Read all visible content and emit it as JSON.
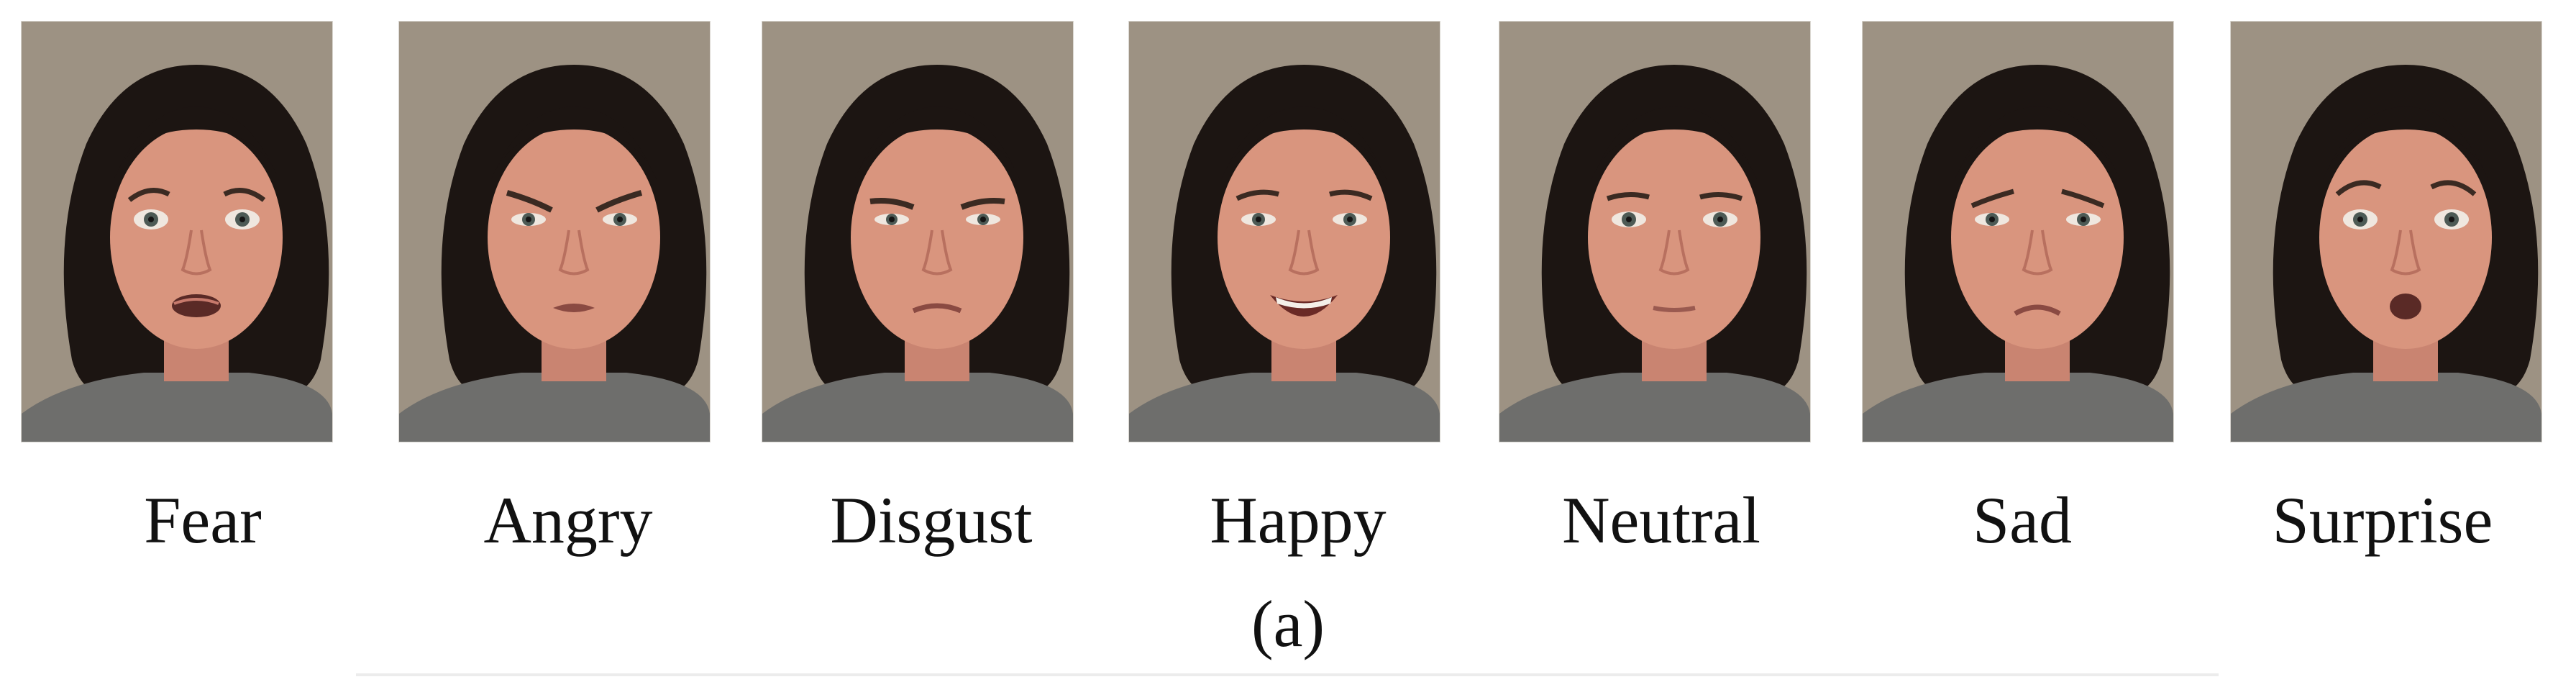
{
  "faces": [
    {
      "label": "Fear",
      "expression": "fear"
    },
    {
      "label": "Angry",
      "expression": "angry"
    },
    {
      "label": "Disgust",
      "expression": "disgust"
    },
    {
      "label": "Happy",
      "expression": "happy"
    },
    {
      "label": "Neutral",
      "expression": "neutral"
    },
    {
      "label": "Sad",
      "expression": "sad"
    },
    {
      "label": "Surprise",
      "expression": "surprise"
    }
  ],
  "caption": "(a)",
  "colors": {
    "background": "#9d9283",
    "hair": "#1c1512",
    "skin": "#d9957e",
    "shirt": "#6e6e6c"
  }
}
